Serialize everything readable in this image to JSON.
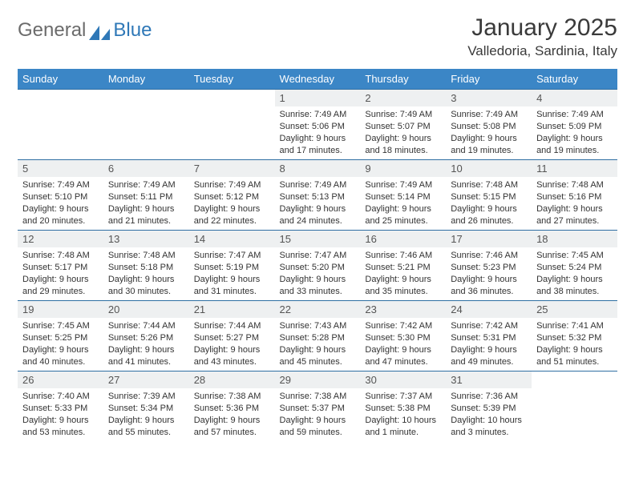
{
  "brand": {
    "part1": "General",
    "part2": "Blue",
    "color_general": "#6b6b6b",
    "color_blue": "#2f78b7",
    "logo_fill": "#2f78b7"
  },
  "header": {
    "title": "January 2025",
    "location": "Valledoria, Sardinia, Italy"
  },
  "colors": {
    "header_row_bg": "#3b86c6",
    "header_row_text": "#ffffff",
    "daynum_bg": "#eef0f1",
    "cell_border": "#2f6fa3",
    "body_bg": "#ffffff"
  },
  "weekdays": [
    "Sunday",
    "Monday",
    "Tuesday",
    "Wednesday",
    "Thursday",
    "Friday",
    "Saturday"
  ],
  "leading_blanks": 3,
  "days": [
    {
      "n": "1",
      "sr": "7:49 AM",
      "ss": "5:06 PM",
      "dl": "9 hours and 17 minutes."
    },
    {
      "n": "2",
      "sr": "7:49 AM",
      "ss": "5:07 PM",
      "dl": "9 hours and 18 minutes."
    },
    {
      "n": "3",
      "sr": "7:49 AM",
      "ss": "5:08 PM",
      "dl": "9 hours and 19 minutes."
    },
    {
      "n": "4",
      "sr": "7:49 AM",
      "ss": "5:09 PM",
      "dl": "9 hours and 19 minutes."
    },
    {
      "n": "5",
      "sr": "7:49 AM",
      "ss": "5:10 PM",
      "dl": "9 hours and 20 minutes."
    },
    {
      "n": "6",
      "sr": "7:49 AM",
      "ss": "5:11 PM",
      "dl": "9 hours and 21 minutes."
    },
    {
      "n": "7",
      "sr": "7:49 AM",
      "ss": "5:12 PM",
      "dl": "9 hours and 22 minutes."
    },
    {
      "n": "8",
      "sr": "7:49 AM",
      "ss": "5:13 PM",
      "dl": "9 hours and 24 minutes."
    },
    {
      "n": "9",
      "sr": "7:49 AM",
      "ss": "5:14 PM",
      "dl": "9 hours and 25 minutes."
    },
    {
      "n": "10",
      "sr": "7:48 AM",
      "ss": "5:15 PM",
      "dl": "9 hours and 26 minutes."
    },
    {
      "n": "11",
      "sr": "7:48 AM",
      "ss": "5:16 PM",
      "dl": "9 hours and 27 minutes."
    },
    {
      "n": "12",
      "sr": "7:48 AM",
      "ss": "5:17 PM",
      "dl": "9 hours and 29 minutes."
    },
    {
      "n": "13",
      "sr": "7:48 AM",
      "ss": "5:18 PM",
      "dl": "9 hours and 30 minutes."
    },
    {
      "n": "14",
      "sr": "7:47 AM",
      "ss": "5:19 PM",
      "dl": "9 hours and 31 minutes."
    },
    {
      "n": "15",
      "sr": "7:47 AM",
      "ss": "5:20 PM",
      "dl": "9 hours and 33 minutes."
    },
    {
      "n": "16",
      "sr": "7:46 AM",
      "ss": "5:21 PM",
      "dl": "9 hours and 35 minutes."
    },
    {
      "n": "17",
      "sr": "7:46 AM",
      "ss": "5:23 PM",
      "dl": "9 hours and 36 minutes."
    },
    {
      "n": "18",
      "sr": "7:45 AM",
      "ss": "5:24 PM",
      "dl": "9 hours and 38 minutes."
    },
    {
      "n": "19",
      "sr": "7:45 AM",
      "ss": "5:25 PM",
      "dl": "9 hours and 40 minutes."
    },
    {
      "n": "20",
      "sr": "7:44 AM",
      "ss": "5:26 PM",
      "dl": "9 hours and 41 minutes."
    },
    {
      "n": "21",
      "sr": "7:44 AM",
      "ss": "5:27 PM",
      "dl": "9 hours and 43 minutes."
    },
    {
      "n": "22",
      "sr": "7:43 AM",
      "ss": "5:28 PM",
      "dl": "9 hours and 45 minutes."
    },
    {
      "n": "23",
      "sr": "7:42 AM",
      "ss": "5:30 PM",
      "dl": "9 hours and 47 minutes."
    },
    {
      "n": "24",
      "sr": "7:42 AM",
      "ss": "5:31 PM",
      "dl": "9 hours and 49 minutes."
    },
    {
      "n": "25",
      "sr": "7:41 AM",
      "ss": "5:32 PM",
      "dl": "9 hours and 51 minutes."
    },
    {
      "n": "26",
      "sr": "7:40 AM",
      "ss": "5:33 PM",
      "dl": "9 hours and 53 minutes."
    },
    {
      "n": "27",
      "sr": "7:39 AM",
      "ss": "5:34 PM",
      "dl": "9 hours and 55 minutes."
    },
    {
      "n": "28",
      "sr": "7:38 AM",
      "ss": "5:36 PM",
      "dl": "9 hours and 57 minutes."
    },
    {
      "n": "29",
      "sr": "7:38 AM",
      "ss": "5:37 PM",
      "dl": "9 hours and 59 minutes."
    },
    {
      "n": "30",
      "sr": "7:37 AM",
      "ss": "5:38 PM",
      "dl": "10 hours and 1 minute."
    },
    {
      "n": "31",
      "sr": "7:36 AM",
      "ss": "5:39 PM",
      "dl": "10 hours and 3 minutes."
    }
  ],
  "labels": {
    "sunrise": "Sunrise:",
    "sunset": "Sunset:",
    "daylight": "Daylight:"
  }
}
